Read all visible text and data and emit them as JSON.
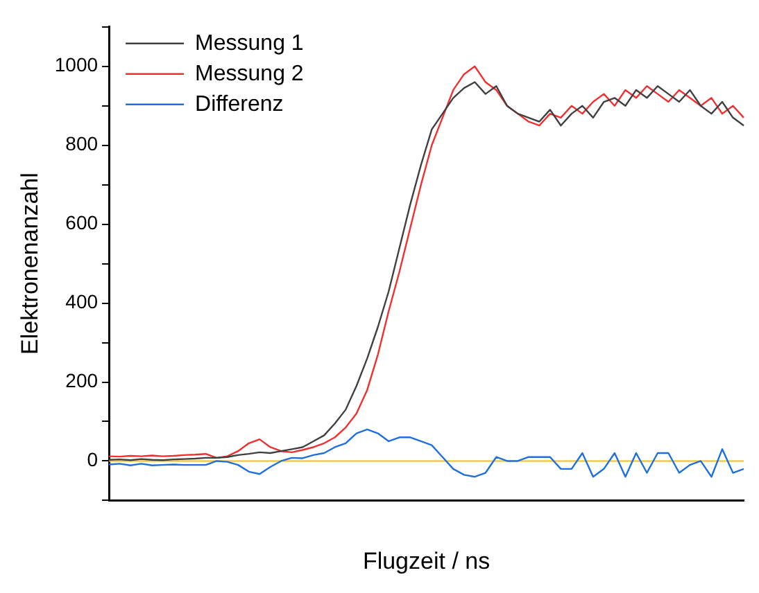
{
  "chart_data": {
    "type": "line",
    "xlabel": "Flugzeit / ns",
    "ylabel": "Elektronenanzahl",
    "categories": [
      null,
      null,
      null,
      null,
      null,
      null,
      null,
      null,
      null,
      null,
      null,
      null,
      null,
      null,
      null,
      null,
      null,
      null,
      null,
      null,
      null,
      null,
      null,
      null,
      null,
      null,
      null,
      null,
      null,
      null,
      null,
      null,
      null,
      null,
      null,
      null,
      null,
      null,
      null,
      null,
      null,
      null,
      null,
      null,
      null,
      null,
      null,
      null,
      null,
      null,
      null,
      null,
      null,
      null,
      null,
      null,
      null,
      null,
      null,
      null
    ],
    "series": [
      {
        "name": "Messung 1",
        "color": "#404040",
        "values": [
          3,
          4,
          2,
          5,
          3,
          2,
          4,
          5,
          6,
          8,
          8,
          10,
          15,
          18,
          22,
          20,
          25,
          30,
          35,
          50,
          65,
          95,
          130,
          190,
          260,
          340,
          430,
          540,
          650,
          750,
          840,
          880,
          920,
          945,
          960,
          930,
          950,
          900,
          880,
          870,
          860,
          890,
          850,
          880,
          900,
          870,
          910,
          920,
          900,
          940,
          920,
          950,
          930,
          910,
          940,
          900,
          880,
          910,
          870,
          850
        ]
      },
      {
        "name": "Messung 2",
        "color": "#f03030",
        "values": [
          12,
          11,
          13,
          12,
          14,
          12,
          13,
          15,
          16,
          18,
          8,
          12,
          25,
          45,
          55,
          35,
          25,
          22,
          28,
          35,
          45,
          60,
          85,
          120,
          180,
          270,
          380,
          480,
          590,
          700,
          800,
          870,
          940,
          980,
          1000,
          960,
          940,
          900,
          880,
          860,
          850,
          880,
          870,
          900,
          880,
          910,
          930,
          900,
          940,
          920,
          950,
          930,
          910,
          940,
          920,
          900,
          920,
          880,
          900,
          870
        ]
      },
      {
        "name": "Differenz",
        "color": "#1f6fdc",
        "values": [
          -9,
          -7,
          -11,
          -7,
          -11,
          -10,
          -9,
          -10,
          -10,
          -10,
          0,
          -2,
          -10,
          -27,
          -33,
          -15,
          0,
          8,
          7,
          15,
          20,
          35,
          45,
          70,
          80,
          70,
          50,
          60,
          60,
          50,
          40,
          10,
          -20,
          -35,
          -40,
          -30,
          10,
          0,
          0,
          10,
          10,
          10,
          -20,
          -20,
          20,
          -40,
          -20,
          20,
          -40,
          20,
          -30,
          20,
          20,
          -30,
          -10,
          0,
          -40,
          30,
          -30,
          -20
        ]
      }
    ],
    "ylim": [
      -100,
      1100
    ],
    "yticks": [
      {
        "value": -100,
        "label": null
      },
      0,
      {
        "value": 100,
        "label": null
      },
      200,
      {
        "value": 300,
        "label": null
      },
      400,
      {
        "value": 500,
        "label": null
      },
      600,
      {
        "value": 700,
        "label": null
      },
      800,
      {
        "value": 900,
        "label": null
      },
      1000,
      {
        "value": 1100,
        "label": null
      }
    ],
    "ref_lines": [
      {
        "axis": "y",
        "value": 0,
        "color": "#ffc000"
      }
    ],
    "legend": "top left",
    "grid": false,
    "marker": "none",
    "line_style": "solid"
  }
}
